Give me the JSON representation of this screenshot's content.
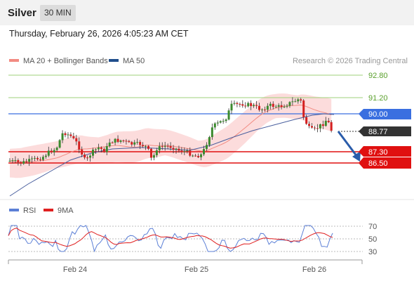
{
  "header": {
    "symbol": "Silver",
    "interval": "30 MIN"
  },
  "timestamp": "Thursday, February 26, 2026 4:05:23 AM CET",
  "legend": {
    "items": [
      {
        "label": "MA 20 + Bollinger Bands",
        "color": "#f28b82"
      },
      {
        "label": "MA 50",
        "color": "#1f4e8c"
      }
    ],
    "watermark": "Research © 2026 Trading Central"
  },
  "rsi_legend": {
    "items": [
      {
        "label": "RSI",
        "color": "#5b7fd6"
      },
      {
        "label": "9MA",
        "color": "#e02020"
      }
    ]
  },
  "chart_data": {
    "type": "candlestick",
    "x_ticks": [
      "Feb 24",
      "Feb 25",
      "Feb 26"
    ],
    "price_axis_labels": [
      "92.80",
      "91.20",
      "90.00",
      "88.77",
      "87.30",
      "86.50"
    ],
    "levels": {
      "resistance": [
        92.8,
        91.2
      ],
      "pivot": 90.0,
      "current": 88.77,
      "support": [
        87.3,
        86.5
      ]
    },
    "level_colors": {
      "resistance": "#7cc24a",
      "pivot": "#3a6fe0",
      "current": "#333333",
      "support": "#e01010"
    },
    "projection": {
      "from": 88.77,
      "to": 86.5
    },
    "rsi_axis": [
      70,
      50,
      30
    ]
  }
}
